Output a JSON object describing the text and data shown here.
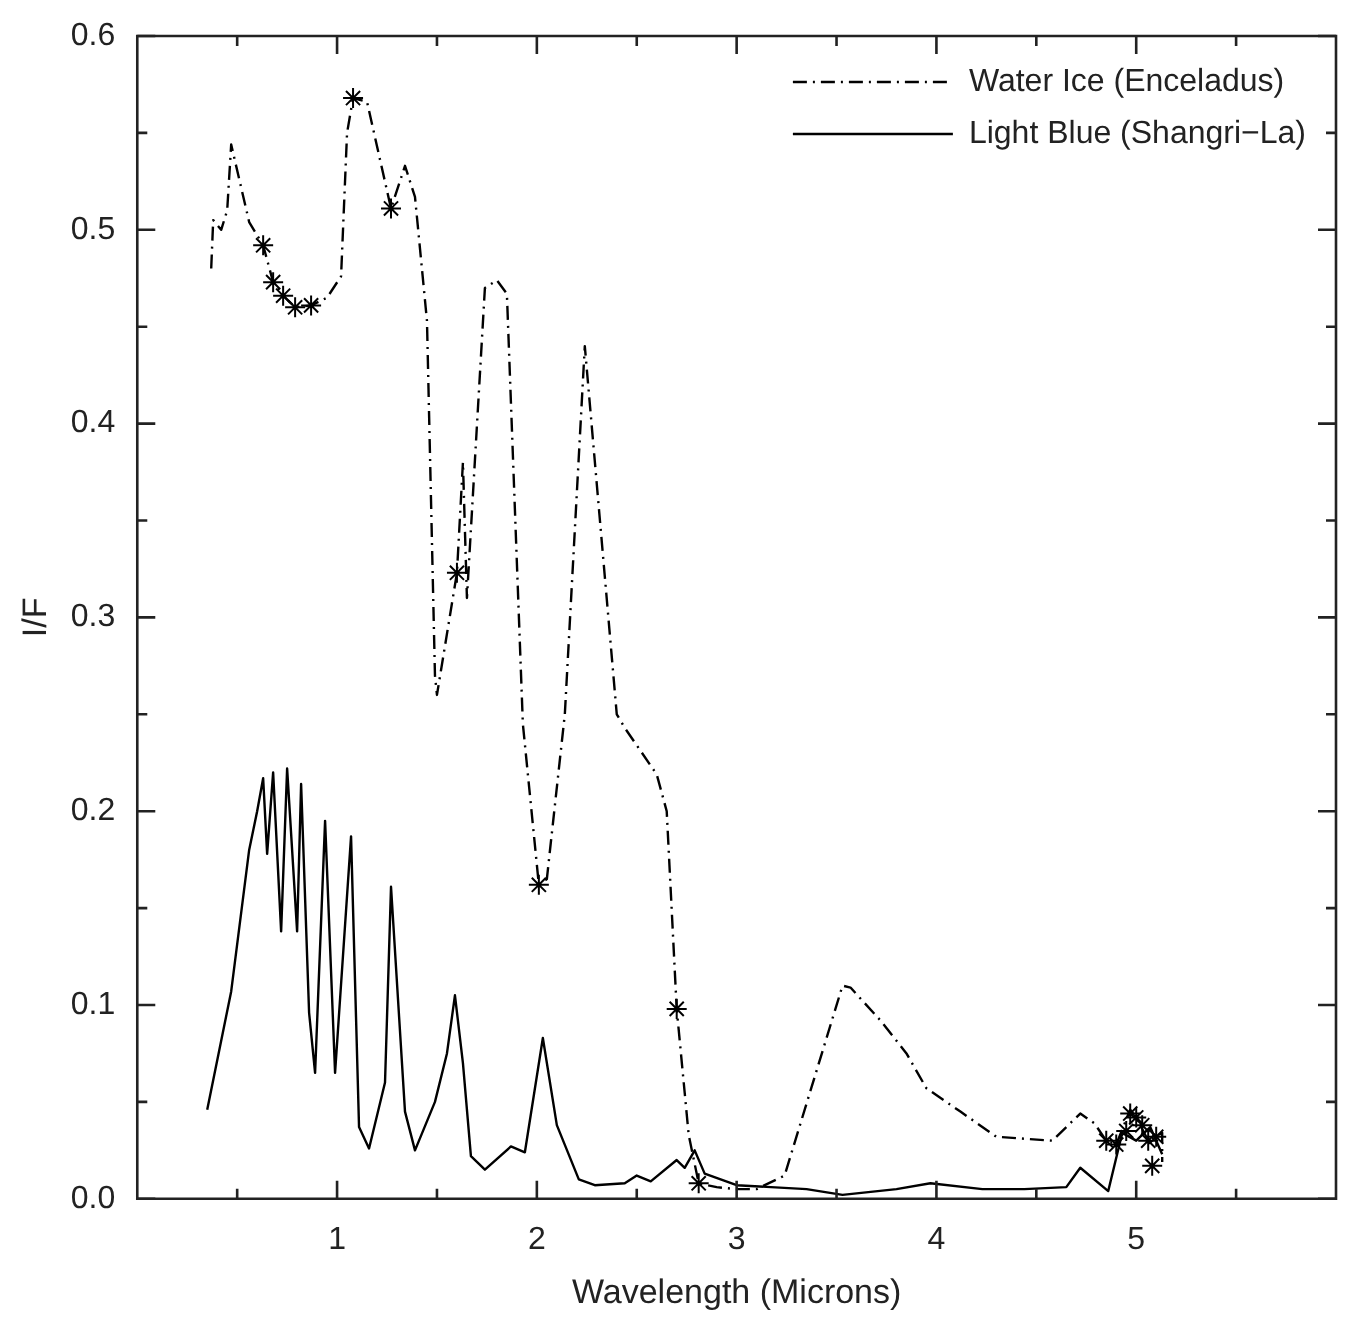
{
  "chart_data": {
    "type": "line",
    "xlabel": "Wavelength (Microns)",
    "ylabel": "I/F",
    "xlim": [
      0,
      6
    ],
    "ylim": [
      0,
      0.6
    ],
    "xticks": [
      {
        "value": 0.5,
        "label": null
      },
      1,
      {
        "value": 1.5,
        "label": null
      },
      2,
      {
        "value": 2.5,
        "label": null
      },
      3,
      {
        "value": 3.5,
        "label": null
      },
      4,
      {
        "value": 4.5,
        "label": null
      },
      5,
      {
        "value": 5.5,
        "label": null
      }
    ],
    "yticks": [
      {
        "value": 0,
        "label": "0.0"
      },
      {
        "value": 0.05,
        "label": null
      },
      0.1,
      {
        "value": 0.15,
        "label": null
      },
      0.2,
      {
        "value": 0.25,
        "label": null
      },
      0.3,
      {
        "value": 0.35,
        "label": null
      },
      0.4,
      {
        "value": 0.45,
        "label": null
      },
      0.5,
      {
        "value": 0.55,
        "label": null
      },
      0.6
    ],
    "grid": false,
    "legend": "top right",
    "marker": "none",
    "series": [
      {
        "name": "Water Ice (Enceladus)",
        "color": "#000000",
        "line_style": "dashed",
        "x": [
          0.37,
          0.38,
          0.42,
          0.45,
          0.47,
          0.56,
          0.63,
          0.68,
          0.73,
          0.79,
          0.87,
          0.95,
          1.02,
          1.05,
          1.08,
          1.15,
          1.27,
          1.34,
          1.39,
          1.45,
          1.49,
          1.5,
          1.6,
          1.63,
          1.65,
          1.74,
          1.8,
          1.85,
          1.93,
          2.01,
          2.05,
          2.14,
          2.24,
          2.4,
          2.44,
          2.6,
          2.65,
          2.7,
          2.76,
          2.81,
          2.9,
          3.0,
          3.1,
          3.24,
          3.53,
          3.57,
          3.72,
          3.85,
          3.95,
          4.12,
          4.3,
          4.58,
          4.72,
          4.79,
          4.85,
          4.9,
          4.97,
          5.0,
          5.06,
          5.13,
          5.13
        ],
        "values": [
          0.48,
          0.505,
          0.5,
          0.51,
          0.544,
          0.504,
          0.492,
          0.473,
          0.466,
          0.46,
          0.461,
          0.465,
          0.476,
          0.55,
          0.568,
          0.566,
          0.511,
          0.533,
          0.517,
          0.453,
          0.27,
          0.26,
          0.323,
          0.38,
          0.31,
          0.47,
          0.474,
          0.467,
          0.245,
          0.162,
          0.165,
          0.25,
          0.44,
          0.25,
          0.243,
          0.219,
          0.2,
          0.098,
          0.033,
          0.008,
          0.006,
          0.005,
          0.005,
          0.012,
          0.11,
          0.109,
          0.092,
          0.075,
          0.057,
          0.045,
          0.032,
          0.03,
          0.044,
          0.039,
          0.03,
          0.028,
          0.046,
          0.042,
          0.03,
          0.034,
          0.019
        ]
      },
      {
        "name": "Light Blue (Shangri−La)",
        "color": "#000000",
        "line_style": "solid",
        "x": [
          0.35,
          0.47,
          0.56,
          0.6,
          0.63,
          0.65,
          0.68,
          0.72,
          0.75,
          0.8,
          0.82,
          0.86,
          0.89,
          0.94,
          0.99,
          1.07,
          1.11,
          1.16,
          1.24,
          1.27,
          1.34,
          1.39,
          1.49,
          1.55,
          1.59,
          1.63,
          1.67,
          1.74,
          1.87,
          1.94,
          2.03,
          2.1,
          2.21,
          2.29,
          2.44,
          2.5,
          2.57,
          2.7,
          2.74,
          2.79,
          2.84,
          3.0,
          3.35,
          3.53,
          3.8,
          3.97,
          4.23,
          4.44,
          4.65,
          4.72,
          4.86,
          4.93,
          5.0,
          5.07,
          5.13
        ],
        "values": [
          0.046,
          0.107,
          0.18,
          0.2,
          0.217,
          0.178,
          0.22,
          0.138,
          0.222,
          0.138,
          0.214,
          0.096,
          0.065,
          0.195,
          0.065,
          0.187,
          0.037,
          0.026,
          0.06,
          0.161,
          0.045,
          0.025,
          0.05,
          0.075,
          0.105,
          0.07,
          0.022,
          0.015,
          0.027,
          0.024,
          0.083,
          0.038,
          0.01,
          0.007,
          0.008,
          0.012,
          0.009,
          0.02,
          0.016,
          0.025,
          0.013,
          0.007,
          0.005,
          0.002,
          0.005,
          0.008,
          0.005,
          0.005,
          0.006,
          0.016,
          0.004,
          0.034,
          0.03,
          0.037,
          0.023
        ]
      },
      {
        "type": "scatter",
        "color": "#000000",
        "marker": "cross",
        "x": [
          0.63,
          0.68,
          0.73,
          0.79,
          0.87,
          1.08,
          1.27,
          1.6,
          2.01,
          2.7,
          2.81,
          4.85,
          4.9,
          4.95,
          4.97,
          5.0,
          5.03,
          5.06,
          5.1,
          5.08
        ],
        "values": [
          0.492,
          0.473,
          0.466,
          0.46,
          0.461,
          0.568,
          0.511,
          0.323,
          0.162,
          0.098,
          0.008,
          0.03,
          0.028,
          0.035,
          0.044,
          0.042,
          0.038,
          0.03,
          0.032,
          0.017
        ]
      }
    ]
  }
}
